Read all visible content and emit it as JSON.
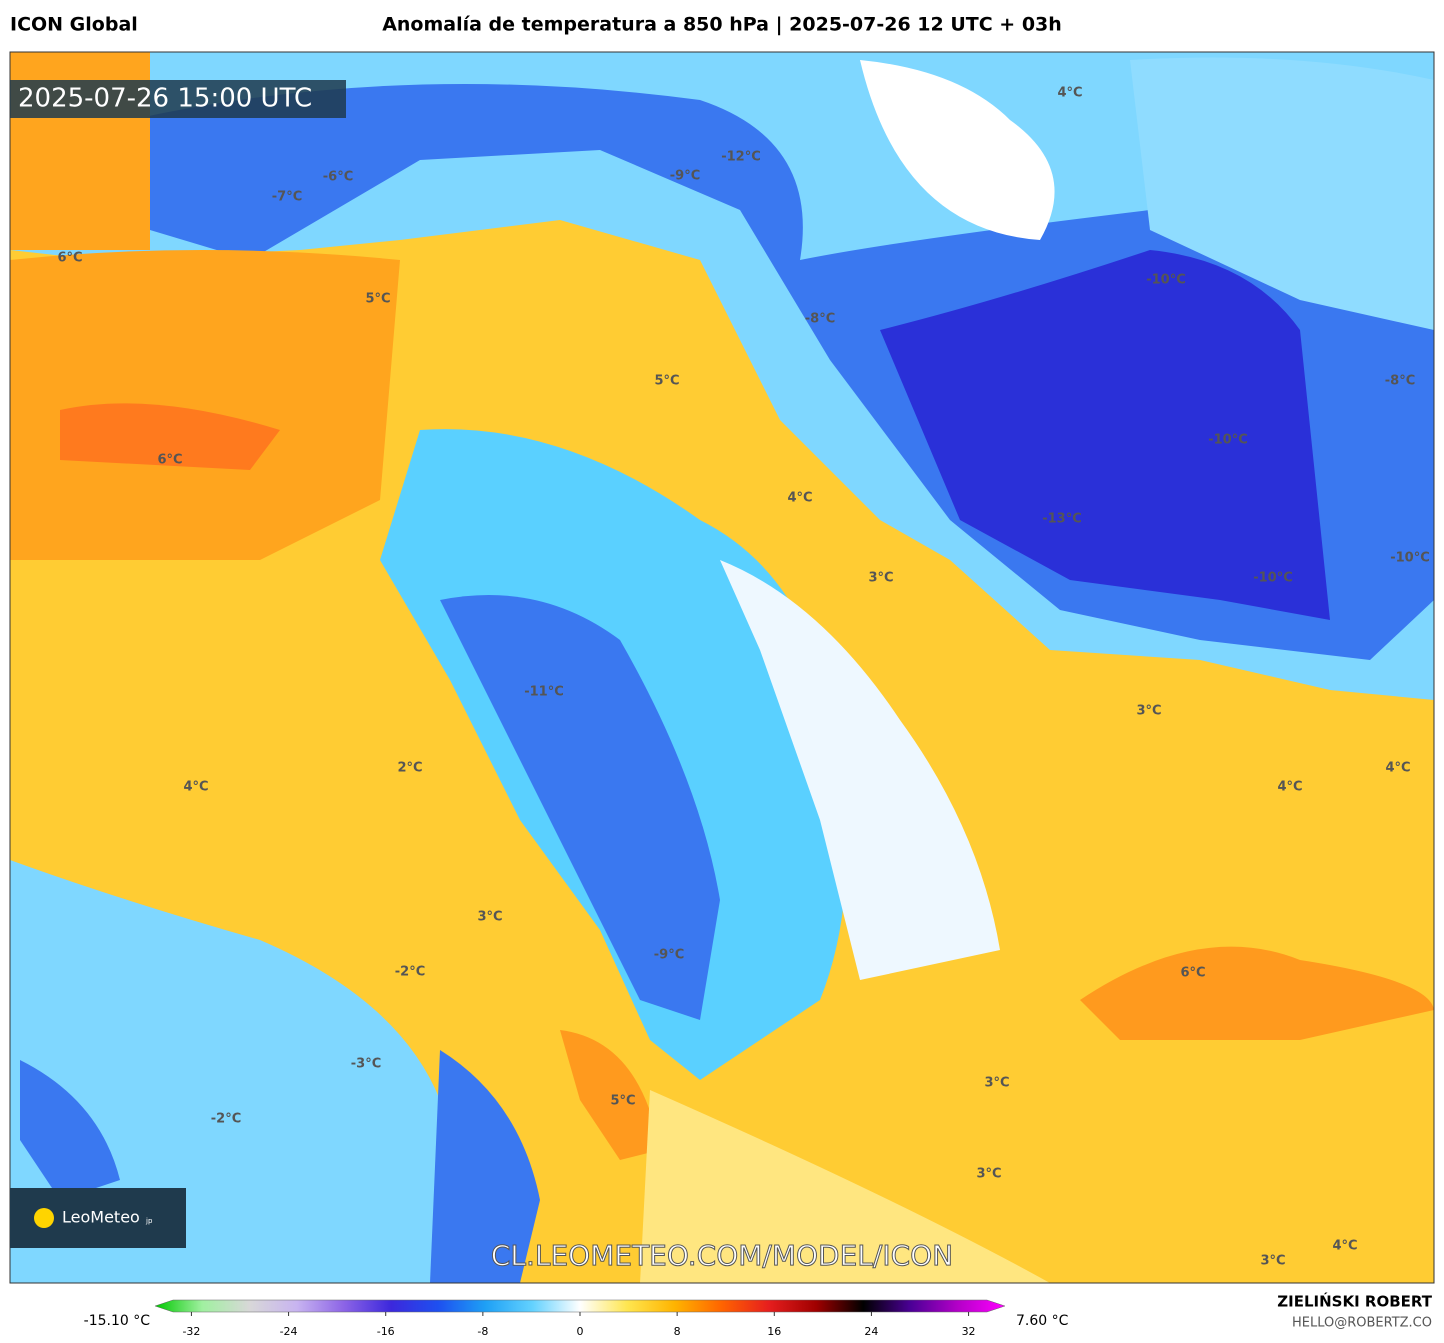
{
  "header": {
    "model": "ICON Global",
    "title": "Anomalía de temperatura a 850 hPa | 2025-07-26 12 UTC + 03h"
  },
  "map": {
    "timestamp": "2025-07-26 15:00 UTC",
    "watermark": "CL.LEOMETEO.COM/MODEL/ICON",
    "logo": "LeoMeteo",
    "logo_suffix": "jp",
    "labels": [
      "4°C",
      "-12°C",
      "-9°C",
      "-6°C",
      "-7°C",
      "6°C",
      "5°C",
      "-10°C",
      "-8°C",
      "5°C",
      "-8°C",
      "6°C",
      "-10°C",
      "4°C",
      "-13°C",
      "3°C",
      "-10°C",
      "-10°C",
      "-11°C",
      "3°C",
      "2°C",
      "4°C",
      "4°C",
      "4°C",
      "3°C",
      "-2°C",
      "6°C",
      "-9°C",
      "-3°C",
      "3°C",
      "5°C",
      "-2°C",
      "3°C",
      "3°C",
      "4°C"
    ]
  },
  "colorbar": {
    "min_label": "-15.10 °C",
    "max_label": "7.60 °C",
    "range": [
      -35,
      35
    ],
    "ticks": [
      -32,
      -24,
      -16,
      -8,
      0,
      8,
      16,
      24,
      32
    ],
    "colors": [
      "#00c800",
      "#a0f0a0",
      "#d8d8d8",
      "#c8b4f0",
      "#8c64e6",
      "#3c28dc",
      "#1e50f0",
      "#1ea0f5",
      "#64d2ff",
      "#ffffff",
      "#ffe650",
      "#ffb400",
      "#ff6400",
      "#e61e1e",
      "#a00000",
      "#000000",
      "#4b0096",
      "#b400c8",
      "#ff00ff"
    ]
  },
  "footer": {
    "author": "ZIELIŃSKI ROBERT",
    "email": "HELLO@ROBERTZ.CO"
  }
}
